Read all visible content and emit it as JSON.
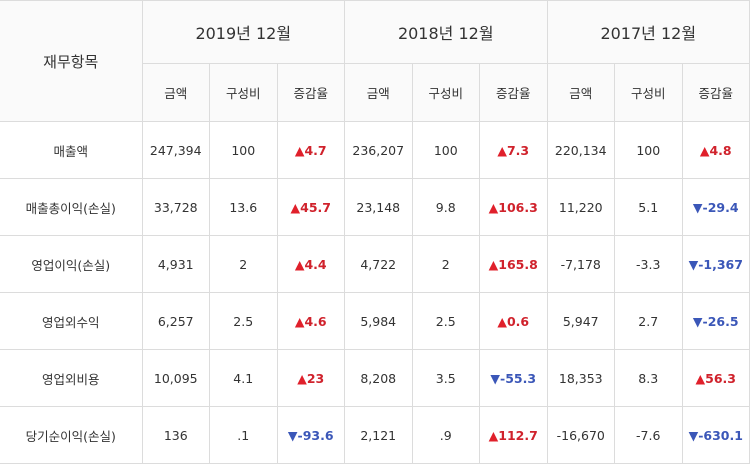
{
  "header": {
    "item": "재무항목",
    "years": [
      "2019년 12월",
      "2018년 12월",
      "2017년 12월"
    ],
    "subheaders": [
      "금액",
      "구성비",
      "증감율",
      "금액",
      "구성비",
      "증감율",
      "금액",
      "구성비",
      "증감율"
    ]
  },
  "table": {
    "rows": [
      {
        "label": "매출액",
        "cells": [
          "247,394",
          "100",
          "▲4.7",
          "236,207",
          "100",
          "▲7.3",
          "220,134",
          "100",
          "▲4.8"
        ]
      },
      {
        "label": "매출총이익(손실)",
        "cells": [
          "33,728",
          "13.6",
          "▲45.7",
          "23,148",
          "9.8",
          "▲106.3",
          "11,220",
          "5.1",
          "▼-29.4"
        ]
      },
      {
        "label": "영업이익(손실)",
        "cells": [
          "4,931",
          "2",
          "▲4.4",
          "4,722",
          "2",
          "▲165.8",
          "-7,178",
          "-3.3",
          "▼-1,367"
        ]
      },
      {
        "label": "영업외수익",
        "cells": [
          "6,257",
          "2.5",
          "▲4.6",
          "5,984",
          "2.5",
          "▲0.6",
          "5,947",
          "2.7",
          "▼-26.5"
        ]
      },
      {
        "label": "영업외비용",
        "cells": [
          "10,095",
          "4.1",
          "▲23",
          "8,208",
          "3.5",
          "▼-55.3",
          "18,353",
          "8.3",
          "▲56.3"
        ]
      },
      {
        "label": "당기순이익(손실)",
        "cells": [
          "136",
          ".1",
          "▼-93.6",
          "2,121",
          ".9",
          "▲112.7",
          "-16,670",
          "-7.6",
          "▼-630.1"
        ]
      }
    ]
  }
}
